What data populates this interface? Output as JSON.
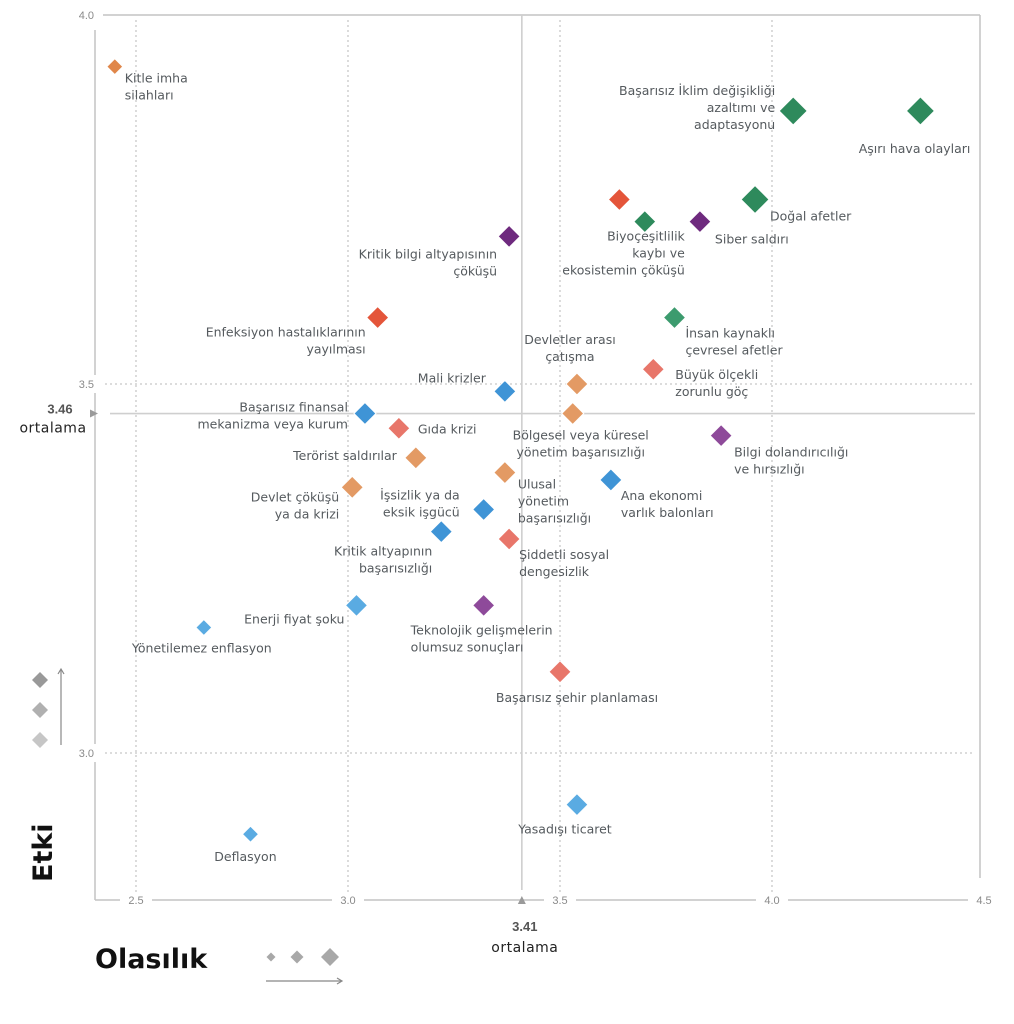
{
  "chart_data": {
    "type": "scatter",
    "title": "",
    "xlabel": "Olasılık",
    "ylabel": "Etki",
    "xlim": [
      2.4,
      4.5
    ],
    "ylim": [
      2.8,
      4.0
    ],
    "x_ticks": [
      "2.5",
      "3.0",
      "3.5",
      "4.0",
      "4.5"
    ],
    "y_ticks": [
      "4.0",
      "3.5",
      "3.0"
    ],
    "grid": true,
    "x_mean": {
      "value": 3.41,
      "value_label": "3.41",
      "label": "ortalama"
    },
    "y_mean": {
      "value": 3.46,
      "value_label": "3.46",
      "label": "ortalama"
    },
    "colors": {
      "orange": "#e0874a",
      "orange_light": "#e39a64",
      "green": "#2e8a5c",
      "green_light": "#3c9b6e",
      "red": "#e4553a",
      "red_light": "#e8766a",
      "blue": "#3f94d6",
      "blue_light": "#5aabe2",
      "purple": "#6e2a7e",
      "purple_light": "#8e4a9a"
    },
    "legend": {
      "size_scale": "Olasılık",
      "shade_scale": "Etki"
    },
    "points": [
      {
        "label": [
          "Kitle imha",
          "silahları"
        ],
        "x": 2.45,
        "y": 3.93,
        "color": "orange",
        "size": 1,
        "anchor": "start",
        "lx": 10,
        "ly": 16
      },
      {
        "label": [
          "Başarısız İklim değişikliği",
          "azaltımı ve",
          "adaptasyonu"
        ],
        "x": 4.05,
        "y": 3.87,
        "color": "green",
        "size": 3,
        "anchor": "end",
        "lx": -18,
        "ly": -16
      },
      {
        "label": [
          "Aşırı hava olayları"
        ],
        "x": 4.35,
        "y": 3.87,
        "color": "green",
        "size": 3,
        "anchor": "end",
        "lx": 50,
        "ly": 42
      },
      {
        "label": [
          "Doğal afetler"
        ],
        "x": 3.96,
        "y": 3.75,
        "color": "green",
        "size": 3,
        "anchor": "start",
        "lx": 15,
        "ly": 21
      },
      {
        "label": [
          ""
        ],
        "x": 3.64,
        "y": 3.75,
        "color": "red",
        "size": 2,
        "anchor": "start",
        "lx": 0,
        "ly": 0
      },
      {
        "label": [
          "Biyoçeşitlilik",
          "kaybı ve",
          "ekosistemin çöküşü"
        ],
        "x": 3.7,
        "y": 3.72,
        "color": "green",
        "size": 2,
        "anchor": "end",
        "lx": 40,
        "ly": 19
      },
      {
        "label": [
          "Siber saldırı"
        ],
        "x": 3.83,
        "y": 3.72,
        "color": "purple",
        "size": 2,
        "anchor": "start",
        "lx": 15,
        "ly": 22
      },
      {
        "label": [
          "Kritik bilgi altyapısının",
          "çöküşü"
        ],
        "x": 3.38,
        "y": 3.7,
        "color": "purple",
        "size": 2,
        "anchor": "end",
        "lx": -12,
        "ly": 22
      },
      {
        "label": [
          "İnsan kaynaklı",
          "çevresel afetler"
        ],
        "x": 3.77,
        "y": 3.59,
        "color": "green_light",
        "size": 2,
        "anchor": "start",
        "lx": 11,
        "ly": 20
      },
      {
        "label": [
          "Enfeksiyon hastalıklarının",
          "yayılması"
        ],
        "x": 3.07,
        "y": 3.59,
        "color": "red",
        "size": 2,
        "anchor": "end",
        "lx": -12,
        "ly": 19
      },
      {
        "label": [
          "Büyük ölçekli",
          "zorunlu göç"
        ],
        "x": 3.72,
        "y": 3.52,
        "color": "red_light",
        "size": 2,
        "anchor": "start",
        "lx": 22,
        "ly": 10
      },
      {
        "label": [
          "Devletler arası",
          "çatışma"
        ],
        "x": 3.54,
        "y": 3.5,
        "color": "orange_light",
        "size": 2,
        "anchor": "middle",
        "lx": -7,
        "ly": -40
      },
      {
        "label": [
          "Mali krizler"
        ],
        "x": 3.37,
        "y": 3.49,
        "color": "blue",
        "size": 2,
        "anchor": "end",
        "lx": -19,
        "ly": -9
      },
      {
        "label": [
          "Bölgesel veya küresel",
          "yönetim başarısızlığı"
        ],
        "x": 3.53,
        "y": 3.46,
        "color": "orange_light",
        "size": 2,
        "anchor": "middle",
        "lx": 8,
        "ly": 26
      },
      {
        "label": [
          "Başarısız finansal",
          "mekanizma veya kurum"
        ],
        "x": 3.04,
        "y": 3.46,
        "color": "blue",
        "size": 2,
        "anchor": "end",
        "lx": -17,
        "ly": -2
      },
      {
        "label": [
          "Gıda krizi"
        ],
        "x": 3.12,
        "y": 3.44,
        "color": "red_light",
        "size": 2,
        "anchor": "start",
        "lx": 19,
        "ly": 5
      },
      {
        "label": [
          "Bilgi dolandırıcılığı",
          "ve hırsızlığı"
        ],
        "x": 3.88,
        "y": 3.43,
        "color": "purple_light",
        "size": 2,
        "anchor": "start",
        "lx": 13,
        "ly": 21
      },
      {
        "label": [
          "Terörist saldırılar"
        ],
        "x": 3.16,
        "y": 3.4,
        "color": "orange_light",
        "size": 2,
        "anchor": "end",
        "lx": -19,
        "ly": 2
      },
      {
        "label": [
          "Ulusal",
          "yönetim",
          "başarısızlığı"
        ],
        "x": 3.37,
        "y": 3.38,
        "color": "orange_light",
        "size": 2,
        "anchor": "start",
        "lx": 13,
        "ly": 16
      },
      {
        "label": [
          "Ana ekonomi",
          "varlık balonları"
        ],
        "x": 3.62,
        "y": 3.37,
        "color": "blue",
        "size": 2,
        "anchor": "start",
        "lx": 10,
        "ly": 20
      },
      {
        "label": [
          "Devlet çöküşü",
          "ya da krizi"
        ],
        "x": 3.01,
        "y": 3.36,
        "color": "orange_light",
        "size": 2,
        "anchor": "end",
        "lx": -13,
        "ly": 14
      },
      {
        "label": [
          "İşsizlik ya da",
          "eksik işgücü"
        ],
        "x": 3.32,
        "y": 3.33,
        "color": "blue",
        "size": 2,
        "anchor": "end",
        "lx": -24,
        "ly": -10
      },
      {
        "label": [
          "Kritik altyapının",
          "başarısızlığı"
        ],
        "x": 3.22,
        "y": 3.3,
        "color": "blue",
        "size": 2,
        "anchor": "end",
        "lx": -9,
        "ly": 24
      },
      {
        "label": [
          "Şiddetli sosyal",
          "dengesizlik"
        ],
        "x": 3.38,
        "y": 3.29,
        "color": "red_light",
        "size": 2,
        "anchor": "start",
        "lx": 10,
        "ly": 20
      },
      {
        "label": [
          "Enerji fiyat şoku"
        ],
        "x": 3.02,
        "y": 3.2,
        "color": "blue_light",
        "size": 2,
        "anchor": "end",
        "lx": -12,
        "ly": 18
      },
      {
        "label": [
          "Teknolojik gelişmelerin",
          "olumsuz sonuçları"
        ],
        "x": 3.32,
        "y": 3.2,
        "color": "purple_light",
        "size": 2,
        "anchor": "start",
        "lx": -73,
        "ly": 29
      },
      {
        "label": [
          "Yönetilemez enflasyon"
        ],
        "x": 2.66,
        "y": 3.17,
        "color": "blue_light",
        "size": 1,
        "anchor": "middle",
        "lx": -2,
        "ly": 25
      },
      {
        "label": [
          "Başarısız şehir planlaması"
        ],
        "x": 3.5,
        "y": 3.11,
        "color": "red_light",
        "size": 2,
        "anchor": "middle",
        "lx": 17,
        "ly": 30
      },
      {
        "label": [
          "Yasadışı ticaret"
        ],
        "x": 3.54,
        "y": 2.93,
        "color": "blue_light",
        "size": 2,
        "anchor": "middle",
        "lx": -12,
        "ly": 29
      },
      {
        "label": [
          "Deflasyon"
        ],
        "x": 2.77,
        "y": 2.89,
        "color": "blue_light",
        "size": 1,
        "anchor": "middle",
        "lx": -5,
        "ly": 27
      }
    ]
  }
}
